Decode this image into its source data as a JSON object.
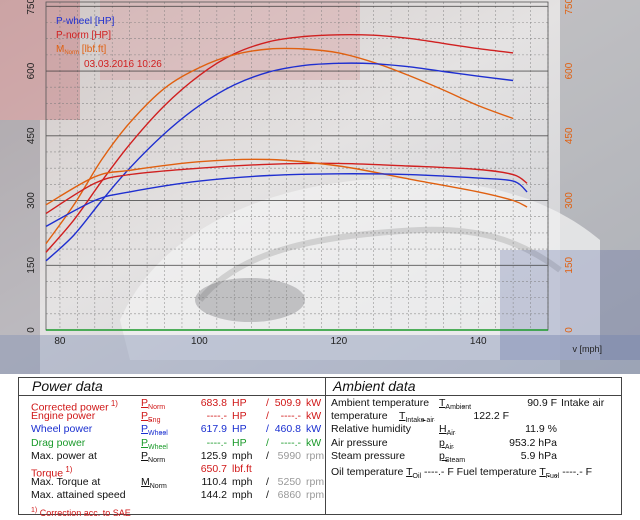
{
  "chart_data": {
    "type": "line",
    "x_unit_label": "v [mph]",
    "xlim": [
      78,
      150
    ],
    "x_ticks": [
      80,
      100,
      120,
      140
    ],
    "y_left_ticks": [
      0,
      150,
      300,
      450,
      600,
      750
    ],
    "y_right_ticks": [
      0,
      150,
      300,
      450,
      600,
      750
    ],
    "ylim": [
      0,
      760
    ],
    "legend": {
      "entries": [
        {
          "label": "P-wheel [HP]",
          "color": "#1f2fd0"
        },
        {
          "label": "P-norm [HP]",
          "color": "#d02020"
        },
        {
          "label": "M",
          "sub": "Norm",
          "suffix": " [lbf.ft]",
          "color": "#e06010"
        }
      ],
      "date": "03.03.2016 10:26"
    },
    "series": [
      {
        "key": "p_norm",
        "color": "#d02020",
        "x": [
          78,
          82,
          86,
          90,
          95,
          100,
          105,
          110,
          115,
          120,
          125,
          130,
          135,
          140,
          145
        ],
        "y": [
          180,
          255,
          345,
          430,
          520,
          590,
          640,
          668,
          680,
          684,
          683,
          676,
          664,
          652,
          642
        ]
      },
      {
        "key": "m_norm",
        "color": "#e06010",
        "x": [
          78,
          82,
          86,
          90,
          95,
          100,
          105,
          110,
          115,
          120,
          125,
          130,
          135,
          140,
          145
        ],
        "y": [
          200,
          290,
          395,
          480,
          560,
          608,
          638,
          651,
          651,
          642,
          620,
          590,
          556,
          520,
          490
        ]
      },
      {
        "key": "p_wheel",
        "color": "#1f2fd0",
        "x": [
          78,
          82,
          86,
          90,
          95,
          100,
          105,
          110,
          115,
          120,
          125,
          130,
          135,
          140,
          145
        ],
        "y": [
          160,
          220,
          300,
          375,
          455,
          520,
          568,
          598,
          613,
          618,
          617,
          610,
          599,
          588,
          578
        ]
      },
      {
        "key": "p_norm_loss",
        "color": "#d02020",
        "x": [
          78,
          85,
          90,
          100,
          110,
          120,
          130,
          140,
          145,
          147
        ],
        "y": [
          270,
          340,
          360,
          375,
          384,
          386,
          380,
          372,
          360,
          340
        ]
      },
      {
        "key": "m_norm_loss",
        "color": "#e06010",
        "x": [
          78,
          85,
          90,
          100,
          110,
          120,
          130,
          140,
          145,
          147
        ],
        "y": [
          290,
          355,
          370,
          390,
          395,
          380,
          350,
          320,
          300,
          285
        ]
      },
      {
        "key": "p_wheel_loss",
        "color": "#1f2fd0",
        "x": [
          78,
          85,
          90,
          100,
          110,
          120,
          130,
          140,
          145,
          147
        ],
        "y": [
          240,
          300,
          320,
          345,
          358,
          362,
          360,
          352,
          345,
          320
        ]
      }
    ]
  },
  "power_data": {
    "title": "Power data",
    "footnote_marker": "1)",
    "rows": [
      {
        "label": "Corrected power",
        "label_note": "1)",
        "label_color": "red",
        "sym": "P",
        "sym_sub": "Norm",
        "v1": "683.8",
        "u1": "HP",
        "sep": "/",
        "v2": "509.9",
        "u2": "kW",
        "color": "red"
      },
      {
        "label": "Engine power",
        "label_color": "red",
        "sym": "P",
        "sym_sub": "Eng",
        "v1": "----.-",
        "u1": "HP",
        "sep": "/",
        "v2": "----.-",
        "u2": "kW",
        "color": "red"
      },
      {
        "label": "Wheel power",
        "label_color": "blue",
        "sym": "P",
        "sym_sub": "Wheel",
        "v1": "617.9",
        "u1": "HP",
        "sep": "/",
        "v2": "460.8",
        "u2": "kW",
        "color": "blue"
      },
      {
        "label": "Drag power",
        "label_color": "green",
        "sym": "P",
        "sym_sub": "Wheel",
        "v1": "----.-",
        "u1": "HP",
        "sep": "/",
        "v2": "----.-",
        "u2": "kW",
        "color": "green"
      },
      {
        "label": "Max. power at",
        "label_color": "black",
        "sym": "P",
        "sym_sub": "Norm",
        "v1": "125.9",
        "u1": "mph",
        "sep": "/",
        "v2": "5990",
        "u2": "rpm",
        "color": "black"
      },
      {
        "label": "Torque",
        "label_note": "1)",
        "label_color": "red",
        "sym": "",
        "sym_sub": "",
        "v1": "650.7",
        "u1": "lbf.ft",
        "sep": "",
        "v2": "",
        "u2": "",
        "color": "red"
      },
      {
        "label": "Max. Torque at",
        "label_color": "black",
        "sym": "M",
        "sym_sub": "Norm",
        "v1": "110.4",
        "u1": "mph",
        "sep": "/",
        "v2": "5250",
        "u2": "rpm",
        "color": "black"
      },
      {
        "label": "Max. attained speed",
        "label_color": "black",
        "sym": "",
        "sym_sub": "",
        "v1": "144.2",
        "u1": "mph",
        "sep": "/",
        "v2": "6860",
        "u2": "rpm",
        "color": "black"
      }
    ],
    "footnote": "Correction acc. to SAE"
  },
  "ambient_data": {
    "title": "Ambient data",
    "rows": [
      {
        "label": "Ambient temperature",
        "sym": "T",
        "sym_sub": "Ambient",
        "value": "90.9 F",
        "extra": "Intake air"
      },
      {
        "label": "temperature",
        "sym": "T",
        "sym_sub": "Intake air",
        "value": "122.2 F",
        "extra": ""
      },
      {
        "label": "Relative humidity",
        "sym": "H",
        "sym_sub": "Air",
        "value": "11.9 %",
        "extra": ""
      },
      {
        "label": "Air pressure",
        "sym": "p",
        "sym_sub": "Air",
        "value": "953.2 hPa",
        "extra": ""
      },
      {
        "label": "Steam pressure",
        "sym": "p",
        "sym_sub": "Steam",
        "value": "5.9 hPa",
        "extra": ""
      }
    ],
    "oil_line": {
      "label": "Oil temperature",
      "sym": "T",
      "sym_sub": "Oil",
      "value": "----.- F"
    },
    "fuel_line": {
      "label": "Fuel temperature",
      "sym": "T",
      "sym_sub": "Fuel",
      "value": "----.- F"
    }
  }
}
